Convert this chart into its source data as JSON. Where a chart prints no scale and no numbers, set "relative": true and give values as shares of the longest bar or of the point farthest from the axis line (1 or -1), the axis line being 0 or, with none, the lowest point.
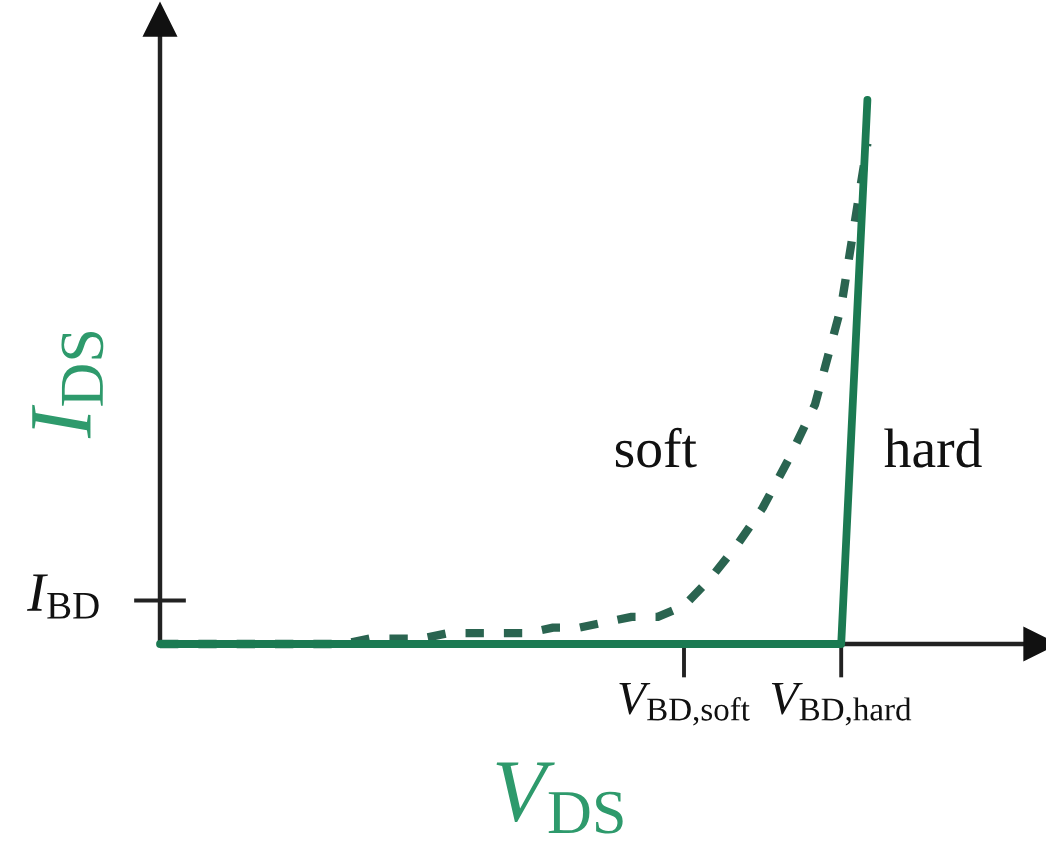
{
  "chart_data": {
    "type": "line",
    "relative": true,
    "xlabel": "V$_{DS}$",
    "ylabel": "I$_{DS}$",
    "categories": [
      null,
      null,
      null,
      null,
      null,
      null,
      null,
      null,
      null,
      null,
      null,
      null,
      null,
      null,
      null,
      null,
      null,
      null,
      null,
      null,
      "V$_{BD,soft}$",
      null,
      null,
      null,
      null,
      null,
      "V$_{BD,hard}$",
      null
    ],
    "ref_lines": [
      {
        "axis": "y",
        "value": 0.08,
        "label": "I$_{BD}$"
      }
    ],
    "series": [
      {
        "name": "soft",
        "line_style": "dashed",
        "color": "#2a6450",
        "values": [
          0,
          0,
          0,
          0,
          0,
          0,
          0,
          0,
          0.01,
          0.01,
          0.01,
          0.02,
          0.02,
          0.02,
          0.02,
          0.03,
          0.03,
          0.04,
          0.05,
          0.05,
          0.07,
          0.12,
          0.18,
          0.25,
          0.34,
          0.44,
          0.62,
          0.92
        ]
      },
      {
        "name": "hard",
        "line_style": "solid",
        "color": "#1b7a52",
        "values": [
          0,
          0,
          0,
          0,
          0,
          0,
          0,
          0,
          0,
          0,
          0,
          0,
          0,
          0,
          0,
          0,
          0,
          0,
          0,
          0,
          0,
          0,
          0,
          0,
          0,
          0,
          0,
          1
        ]
      }
    ]
  }
}
